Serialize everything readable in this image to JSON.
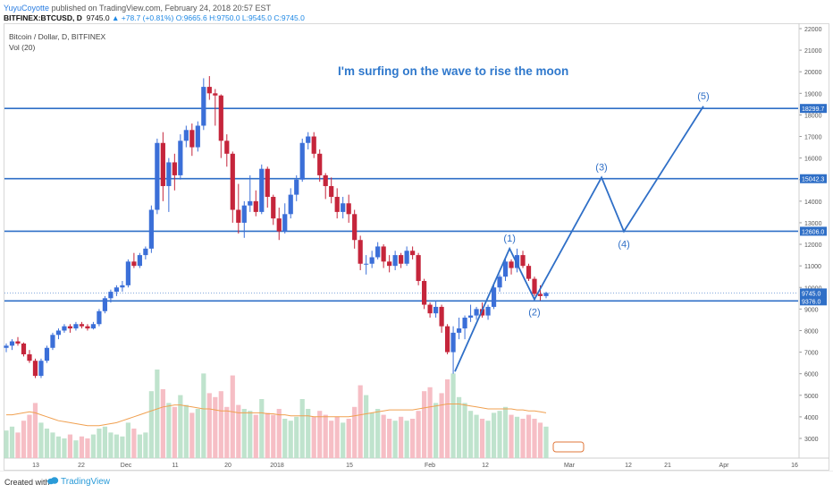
{
  "header": {
    "author": "YuyuCoyotte",
    "published": "published on TradingView.com, February 24, 2018 20:57 EST",
    "symbol": "BITFINEX:BTCUSD, D",
    "last": "9745.0",
    "change_arrow": "▲",
    "change": "+78.7 (+0.81%)",
    "ohlc": "O:9665.6 H:9750.0 L:9545.0 C:9745.0"
  },
  "legend": {
    "title": "Bitcoin / Dollar, D, BITFINEX",
    "volume": "Vol (20)"
  },
  "annotation_text": "I'm surfing on the wave to rise the moon",
  "footer": {
    "created_with": "Created with",
    "brand": "TradingView"
  },
  "chart_data": {
    "type": "candlestick",
    "y_axis_ticks": [
      3000,
      4000,
      5000,
      6000,
      7000,
      8000,
      9000,
      10000,
      11000,
      12000,
      13000,
      14000,
      15000,
      16000,
      17000,
      18000,
      19000,
      20000,
      21000,
      22000
    ],
    "x_axis_labels": [
      "13",
      "22",
      "Dec",
      "11",
      "20",
      "2018",
      "15",
      "Feb",
      "12",
      "Mar",
      "12",
      "21",
      "Apr",
      "16"
    ],
    "horizontal_levels": [
      {
        "value": 18299.7,
        "label": "18299.7",
        "color": "#2f6fc7"
      },
      {
        "value": 15042.3,
        "label": "15042.3",
        "color": "#2f6fc7"
      },
      {
        "value": 12606.0,
        "label": "12606.0",
        "color": "#2f6fc7"
      },
      {
        "value": 9376.0,
        "label": "9376.0",
        "color": "#2f6fc7"
      }
    ],
    "price_label": {
      "value": 9745.0,
      "label": "9745.0"
    },
    "wave_labels": [
      "(1)",
      "(2)",
      "(3)",
      "(4)",
      "(5)"
    ],
    "wave_points": [
      {
        "x": 0.0,
        "y": 6100
      },
      {
        "x": 0.22,
        "y": 11800
      },
      {
        "x": 0.32,
        "y": 9450
      },
      {
        "x": 0.59,
        "y": 15100
      },
      {
        "x": 0.68,
        "y": 12600
      },
      {
        "x": 1.0,
        "y": 18400
      }
    ],
    "candles": [
      {
        "o": 7200,
        "h": 7400,
        "l": 7000,
        "c": 7300
      },
      {
        "o": 7300,
        "h": 7600,
        "l": 7100,
        "c": 7500
      },
      {
        "o": 7500,
        "h": 7700,
        "l": 7300,
        "c": 7400
      },
      {
        "o": 7400,
        "h": 7450,
        "l": 6800,
        "c": 6900
      },
      {
        "o": 6900,
        "h": 7100,
        "l": 6500,
        "c": 6600
      },
      {
        "o": 6600,
        "h": 6700,
        "l": 5800,
        "c": 5900
      },
      {
        "o": 5900,
        "h": 6700,
        "l": 5800,
        "c": 6600
      },
      {
        "o": 6600,
        "h": 7300,
        "l": 6500,
        "c": 7200
      },
      {
        "o": 7200,
        "h": 7900,
        "l": 7100,
        "c": 7800
      },
      {
        "o": 7800,
        "h": 8100,
        "l": 7600,
        "c": 8000
      },
      {
        "o": 8000,
        "h": 8300,
        "l": 7900,
        "c": 8200
      },
      {
        "o": 8200,
        "h": 8300,
        "l": 7900,
        "c": 8100
      },
      {
        "o": 8100,
        "h": 8400,
        "l": 8000,
        "c": 8300
      },
      {
        "o": 8300,
        "h": 8400,
        "l": 8100,
        "c": 8200
      },
      {
        "o": 8200,
        "h": 8300,
        "l": 8000,
        "c": 8100
      },
      {
        "o": 8100,
        "h": 8400,
        "l": 8050,
        "c": 8300
      },
      {
        "o": 8300,
        "h": 9000,
        "l": 8200,
        "c": 8900
      },
      {
        "o": 8900,
        "h": 9600,
        "l": 8800,
        "c": 9500
      },
      {
        "o": 9500,
        "h": 9900,
        "l": 9300,
        "c": 9800
      },
      {
        "o": 9800,
        "h": 10100,
        "l": 9600,
        "c": 10000
      },
      {
        "o": 10000,
        "h": 10300,
        "l": 9800,
        "c": 10100
      },
      {
        "o": 10100,
        "h": 11300,
        "l": 10000,
        "c": 11200
      },
      {
        "o": 11200,
        "h": 11600,
        "l": 10900,
        "c": 11000
      },
      {
        "o": 11000,
        "h": 11600,
        "l": 10900,
        "c": 11500
      },
      {
        "o": 11500,
        "h": 11900,
        "l": 11300,
        "c": 11800
      },
      {
        "o": 11800,
        "h": 13800,
        "l": 11600,
        "c": 13600
      },
      {
        "o": 13600,
        "h": 16900,
        "l": 13400,
        "c": 16700
      },
      {
        "o": 16700,
        "h": 17200,
        "l": 14000,
        "c": 14700
      },
      {
        "o": 14700,
        "h": 16000,
        "l": 13500,
        "c": 15800
      },
      {
        "o": 15800,
        "h": 16200,
        "l": 14500,
        "c": 15200
      },
      {
        "o": 15200,
        "h": 17100,
        "l": 15000,
        "c": 16800
      },
      {
        "o": 16800,
        "h": 17500,
        "l": 16500,
        "c": 17300
      },
      {
        "o": 17300,
        "h": 17600,
        "l": 16100,
        "c": 16500
      },
      {
        "o": 16500,
        "h": 17700,
        "l": 16300,
        "c": 17500
      },
      {
        "o": 17500,
        "h": 19700,
        "l": 17300,
        "c": 19300
      },
      {
        "o": 19300,
        "h": 19800,
        "l": 18700,
        "c": 19000
      },
      {
        "o": 19000,
        "h": 19200,
        "l": 17500,
        "c": 18900
      },
      {
        "o": 18900,
        "h": 18950,
        "l": 16000,
        "c": 16800
      },
      {
        "o": 16800,
        "h": 17100,
        "l": 15600,
        "c": 16200
      },
      {
        "o": 16200,
        "h": 16300,
        "l": 13000,
        "c": 13600
      },
      {
        "o": 13600,
        "h": 14800,
        "l": 12500,
        "c": 13000
      },
      {
        "o": 13000,
        "h": 14000,
        "l": 12300,
        "c": 13800
      },
      {
        "o": 13800,
        "h": 15200,
        "l": 13500,
        "c": 14000
      },
      {
        "o": 14000,
        "h": 14500,
        "l": 13300,
        "c": 13500
      },
      {
        "o": 13500,
        "h": 15700,
        "l": 13400,
        "c": 15500
      },
      {
        "o": 15500,
        "h": 15600,
        "l": 13700,
        "c": 14200
      },
      {
        "o": 14200,
        "h": 14300,
        "l": 12900,
        "c": 13200
      },
      {
        "o": 13200,
        "h": 13700,
        "l": 12200,
        "c": 12600
      },
      {
        "o": 12600,
        "h": 13900,
        "l": 12500,
        "c": 13400
      },
      {
        "o": 13400,
        "h": 14600,
        "l": 13200,
        "c": 14300
      },
      {
        "o": 14300,
        "h": 15200,
        "l": 14000,
        "c": 15000
      },
      {
        "o": 15000,
        "h": 16900,
        "l": 14900,
        "c": 16700
      },
      {
        "o": 16700,
        "h": 17200,
        "l": 16400,
        "c": 17000
      },
      {
        "o": 17000,
        "h": 17200,
        "l": 16000,
        "c": 16200
      },
      {
        "o": 16200,
        "h": 16400,
        "l": 14900,
        "c": 15200
      },
      {
        "o": 15200,
        "h": 15300,
        "l": 14100,
        "c": 14700
      },
      {
        "o": 14700,
        "h": 15100,
        "l": 13900,
        "c": 14200
      },
      {
        "o": 14200,
        "h": 14600,
        "l": 13200,
        "c": 13500
      },
      {
        "o": 13500,
        "h": 14200,
        "l": 13200,
        "c": 13900
      },
      {
        "o": 13900,
        "h": 14300,
        "l": 13000,
        "c": 13400
      },
      {
        "o": 13400,
        "h": 13600,
        "l": 11800,
        "c": 12200
      },
      {
        "o": 12200,
        "h": 12400,
        "l": 10800,
        "c": 11100
      },
      {
        "o": 11100,
        "h": 11500,
        "l": 10600,
        "c": 11100
      },
      {
        "o": 11100,
        "h": 11700,
        "l": 10900,
        "c": 11400
      },
      {
        "o": 11400,
        "h": 12100,
        "l": 11300,
        "c": 11900
      },
      {
        "o": 11900,
        "h": 12000,
        "l": 10900,
        "c": 11200
      },
      {
        "o": 11200,
        "h": 11500,
        "l": 10700,
        "c": 11000
      },
      {
        "o": 11000,
        "h": 11700,
        "l": 10800,
        "c": 11500
      },
      {
        "o": 11500,
        "h": 11600,
        "l": 10900,
        "c": 11100
      },
      {
        "o": 11100,
        "h": 11900,
        "l": 11000,
        "c": 11700
      },
      {
        "o": 11700,
        "h": 11900,
        "l": 11300,
        "c": 11500
      },
      {
        "o": 11500,
        "h": 11600,
        "l": 10100,
        "c": 10300
      },
      {
        "o": 10300,
        "h": 10400,
        "l": 9000,
        "c": 9200
      },
      {
        "o": 9200,
        "h": 9300,
        "l": 8600,
        "c": 8800
      },
      {
        "o": 8800,
        "h": 9400,
        "l": 8600,
        "c": 9100
      },
      {
        "o": 9100,
        "h": 9200,
        "l": 7900,
        "c": 8200
      },
      {
        "o": 8200,
        "h": 8300,
        "l": 6900,
        "c": 7000
      },
      {
        "o": 7000,
        "h": 8200,
        "l": 6000,
        "c": 7900
      },
      {
        "o": 7900,
        "h": 8600,
        "l": 7600,
        "c": 8100
      },
      {
        "o": 8100,
        "h": 8700,
        "l": 7600,
        "c": 8600
      },
      {
        "o": 8600,
        "h": 9200,
        "l": 8400,
        "c": 8700
      },
      {
        "o": 8700,
        "h": 9100,
        "l": 8500,
        "c": 9000
      },
      {
        "o": 9000,
        "h": 9300,
        "l": 8600,
        "c": 8700
      },
      {
        "o": 8700,
        "h": 9200,
        "l": 8500,
        "c": 9100
      },
      {
        "o": 9100,
        "h": 10200,
        "l": 9000,
        "c": 10000
      },
      {
        "o": 10000,
        "h": 10600,
        "l": 9800,
        "c": 10500
      },
      {
        "o": 10500,
        "h": 11400,
        "l": 10300,
        "c": 11200
      },
      {
        "o": 11200,
        "h": 11300,
        "l": 10600,
        "c": 10900
      },
      {
        "o": 10900,
        "h": 11800,
        "l": 10700,
        "c": 11500
      },
      {
        "o": 11500,
        "h": 11700,
        "l": 10900,
        "c": 11000
      },
      {
        "o": 11000,
        "h": 11100,
        "l": 10300,
        "c": 10400
      },
      {
        "o": 10400,
        "h": 10500,
        "l": 9600,
        "c": 9700
      },
      {
        "o": 9700,
        "h": 10100,
        "l": 9400,
        "c": 9600
      },
      {
        "o": 9600,
        "h": 9800,
        "l": 9500,
        "c": 9745
      }
    ],
    "volumes": [
      1400,
      1600,
      1300,
      1900,
      2200,
      2800,
      1800,
      1500,
      1300,
      1100,
      1000,
      1200,
      900,
      1100,
      1000,
      1200,
      1500,
      1600,
      1300,
      1200,
      1100,
      1800,
      1500,
      1200,
      1300,
      3400,
      4500,
      3500,
      2800,
      2600,
      3200,
      2700,
      2300,
      2500,
      4300,
      3300,
      3100,
      3400,
      2600,
      4200,
      2700,
      2500,
      2400,
      2200,
      3000,
      2300,
      2200,
      2500,
      2000,
      1900,
      2100,
      3000,
      2500,
      2100,
      2400,
      2200,
      1900,
      2100,
      1800,
      2000,
      2600,
      3700,
      3200,
      2300,
      2500,
      2200,
      2000,
      1900,
      2100,
      1900,
      2000,
      2400,
      3400,
      3600,
      2800,
      3300,
      4000,
      4300,
      3100,
      2800,
      2400,
      2200,
      2000,
      1900,
      2300,
      2400,
      2600,
      2200,
      2100,
      2000,
      2200,
      2000,
      1800,
      1600
    ],
    "volume_ma": [
      2200,
      2200,
      2250,
      2300,
      2350,
      2300,
      2200,
      2100,
      2000,
      1900,
      1850,
      1800,
      1750,
      1700,
      1650,
      1650,
      1650,
      1700,
      1750,
      1800,
      1900,
      2000,
      2100,
      2200,
      2300,
      2400,
      2500,
      2600,
      2650,
      2700,
      2700,
      2650,
      2600,
      2550,
      2500,
      2500,
      2450,
      2400,
      2400,
      2350,
      2300,
      2300,
      2300,
      2300,
      2300,
      2250,
      2250,
      2200,
      2200,
      2150,
      2150,
      2150,
      2150,
      2100,
      2100,
      2100,
      2100,
      2100,
      2100,
      2100,
      2150,
      2200,
      2250,
      2300,
      2350,
      2400,
      2450,
      2450,
      2450,
      2450,
      2450,
      2500,
      2550,
      2600,
      2650,
      2700,
      2750,
      2750,
      2750,
      2700,
      2650,
      2600,
      2550,
      2500,
      2500,
      2500,
      2500,
      2500,
      2450,
      2450,
      2400,
      2400,
      2350,
      2300
    ]
  }
}
